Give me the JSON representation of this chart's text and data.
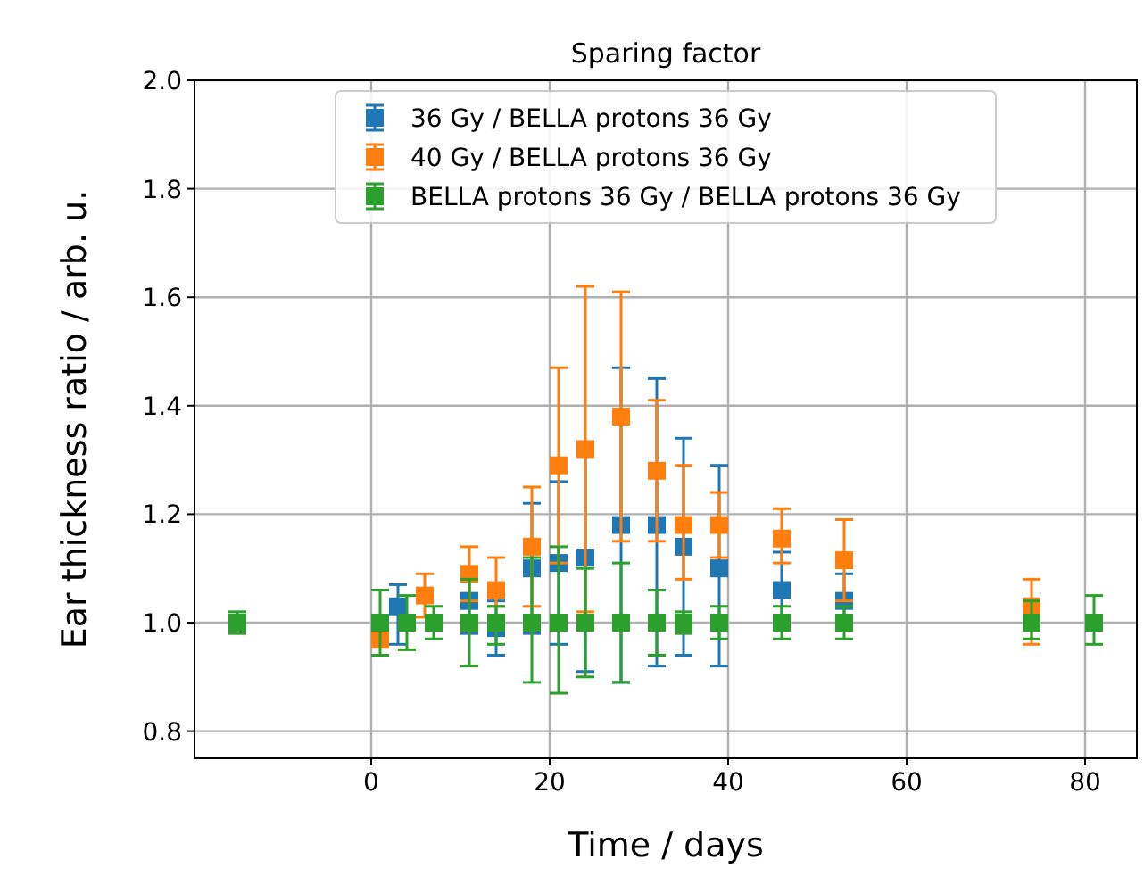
{
  "chart_data": {
    "type": "scatter",
    "title": "Sparing factor",
    "xlabel": "Time / days",
    "ylabel": "Ear thickness ratio / arb. u.",
    "xlim": [
      -19.8,
      85.8
    ],
    "ylim": [
      0.75,
      2.0
    ],
    "xticks": [
      0,
      20,
      40,
      60,
      80
    ],
    "yticks": [
      {
        "value": 0.8,
        "label": "0.8"
      },
      {
        "value": 1.0,
        "label": "1.0"
      },
      {
        "value": 1.2,
        "label": "1.2"
      },
      {
        "value": 1.4,
        "label": "1.4"
      },
      {
        "value": 1.6,
        "label": "1.6"
      },
      {
        "value": 1.8,
        "label": "1.8"
      },
      {
        "value": 2.0,
        "label": "2.0"
      }
    ],
    "grid": true,
    "legend": "top",
    "marker": "square",
    "series": [
      {
        "name": "36 Gy / BELLA protons 36 Gy",
        "color": "#1f77b4",
        "x": [
          3,
          11,
          14,
          18,
          21,
          24,
          28,
          32,
          35,
          39,
          46,
          53
        ],
        "values": [
          1.03,
          1.04,
          0.99,
          1.1,
          1.11,
          1.12,
          1.18,
          1.18,
          1.14,
          1.1,
          1.06,
          1.04
        ],
        "errors": [
          [
            0.96,
            1.07
          ],
          [
            0.98,
            1.1
          ],
          [
            0.94,
            1.04
          ],
          [
            0.98,
            1.22
          ],
          [
            0.96,
            1.26
          ],
          [
            0.91,
            1.33
          ],
          [
            0.89,
            1.47
          ],
          [
            0.92,
            1.45
          ],
          [
            0.94,
            1.34
          ],
          [
            0.92,
            1.29
          ],
          [
            0.99,
            1.13
          ],
          [
            1.01,
            1.09
          ]
        ]
      },
      {
        "name": "40 Gy / BELLA protons 36 Gy",
        "color": "#ff7f0e",
        "x": [
          1,
          6,
          11,
          14,
          18,
          21,
          24,
          28,
          32,
          35,
          39,
          46,
          53,
          74
        ],
        "values": [
          0.97,
          1.05,
          1.09,
          1.06,
          1.14,
          1.29,
          1.32,
          1.38,
          1.28,
          1.18,
          1.18,
          1.155,
          1.115,
          1.03
        ],
        "errors": [
          null,
          [
            1.01,
            1.09
          ],
          [
            1.04,
            1.14
          ],
          [
            1.03,
            1.12
          ],
          [
            1.03,
            1.25
          ],
          [
            1.11,
            1.47
          ],
          [
            1.02,
            1.62
          ],
          [
            1.15,
            1.61
          ],
          [
            1.15,
            1.41
          ],
          [
            1.08,
            1.29
          ],
          [
            1.12,
            1.24
          ],
          [
            1.11,
            1.21
          ],
          [
            1.04,
            1.19
          ],
          [
            0.96,
            1.08
          ]
        ]
      },
      {
        "name": "BELLA protons 36 Gy / BELLA protons 36 Gy",
        "color": "#2ca02c",
        "x": [
          -15,
          1,
          4,
          7,
          11,
          14,
          18,
          21,
          24,
          28,
          32,
          35,
          39,
          46,
          53,
          74,
          81
        ],
        "values": [
          1.0,
          1.0,
          1.0,
          1.0,
          1.0,
          1.0,
          1.0,
          1.0,
          1.0,
          1.0,
          1.0,
          1.0,
          1.0,
          1.0,
          1.0,
          1.0,
          1.0
        ],
        "errors": [
          [
            0.98,
            1.02
          ],
          [
            0.94,
            1.06
          ],
          [
            0.95,
            1.05
          ],
          [
            0.97,
            1.03
          ],
          [
            0.92,
            1.08
          ],
          [
            0.96,
            1.03
          ],
          [
            0.89,
            1.12
          ],
          [
            0.87,
            1.14
          ],
          [
            0.9,
            1.1
          ],
          [
            0.89,
            1.11
          ],
          [
            0.94,
            1.06
          ],
          [
            0.98,
            1.02
          ],
          [
            0.97,
            1.03
          ],
          [
            0.97,
            1.03
          ],
          [
            0.97,
            1.03
          ],
          [
            0.97,
            1.04
          ],
          [
            0.96,
            1.05
          ]
        ]
      }
    ]
  }
}
